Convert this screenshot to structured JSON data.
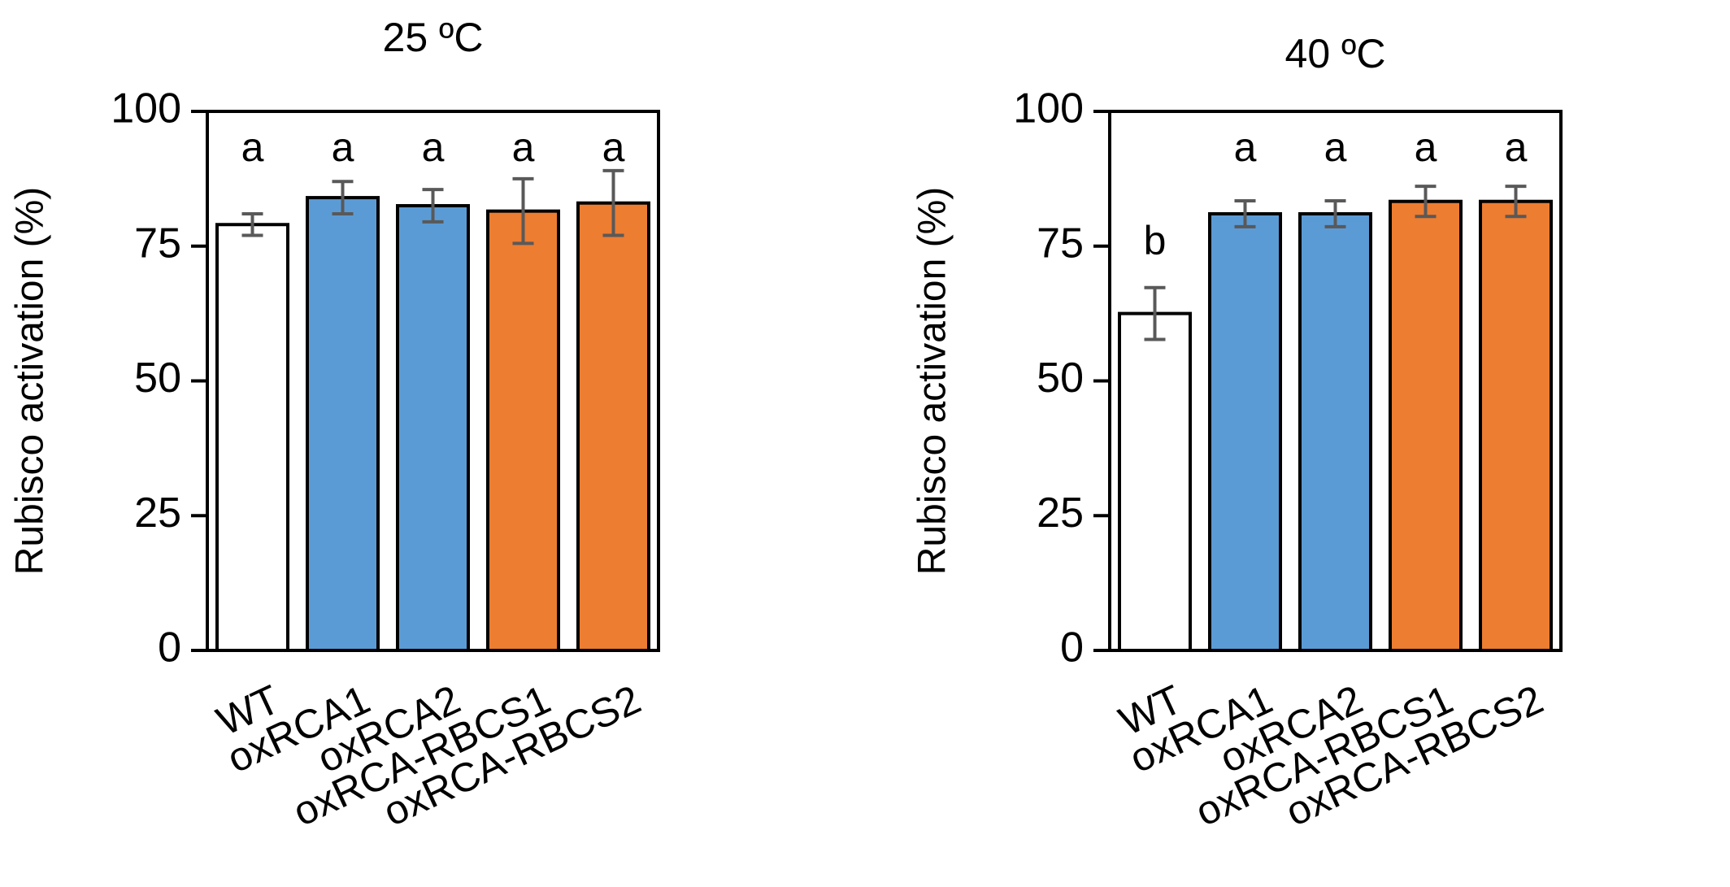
{
  "chart_data": [
    {
      "type": "bar",
      "title": "25 ºC",
      "ylabel": "Rubisco activation (%)",
      "xlabel": "",
      "ylim": [
        0,
        100
      ],
      "yticks": [
        0,
        25,
        50,
        75,
        100
      ],
      "categories": [
        "WT",
        "oxRCA1",
        "oxRCA2",
        "oxRCA-RBCS1",
        "oxRCA-RBCS2"
      ],
      "values": [
        79,
        84,
        82.5,
        81.5,
        83
      ],
      "errors": [
        2,
        3,
        3,
        6,
        6
      ],
      "colors": [
        "#ffffff",
        "#5b9bd5",
        "#5b9bd5",
        "#ed7d31",
        "#ed7d31"
      ],
      "significance": [
        "a",
        "a",
        "a",
        "a",
        "a"
      ],
      "grid": false
    },
    {
      "type": "bar",
      "title": "40 ºC",
      "ylabel": "Rubisco activation (%)",
      "xlabel": "",
      "ylim": [
        0,
        100
      ],
      "yticks": [
        0,
        25,
        50,
        75,
        100
      ],
      "categories": [
        "WT",
        "oxRCA1",
        "oxRCA2",
        "oxRCA-RBCS1",
        "oxRCA-RBCS2"
      ],
      "values": [
        62.5,
        81,
        81,
        83.3,
        83.3
      ],
      "errors": [
        4.8,
        2.4,
        2.4,
        2.8,
        2.8
      ],
      "colors": [
        "#ffffff",
        "#5b9bd5",
        "#5b9bd5",
        "#ed7d31",
        "#ed7d31"
      ],
      "significance": [
        "b",
        "a",
        "a",
        "a",
        "a"
      ],
      "grid": false
    }
  ]
}
